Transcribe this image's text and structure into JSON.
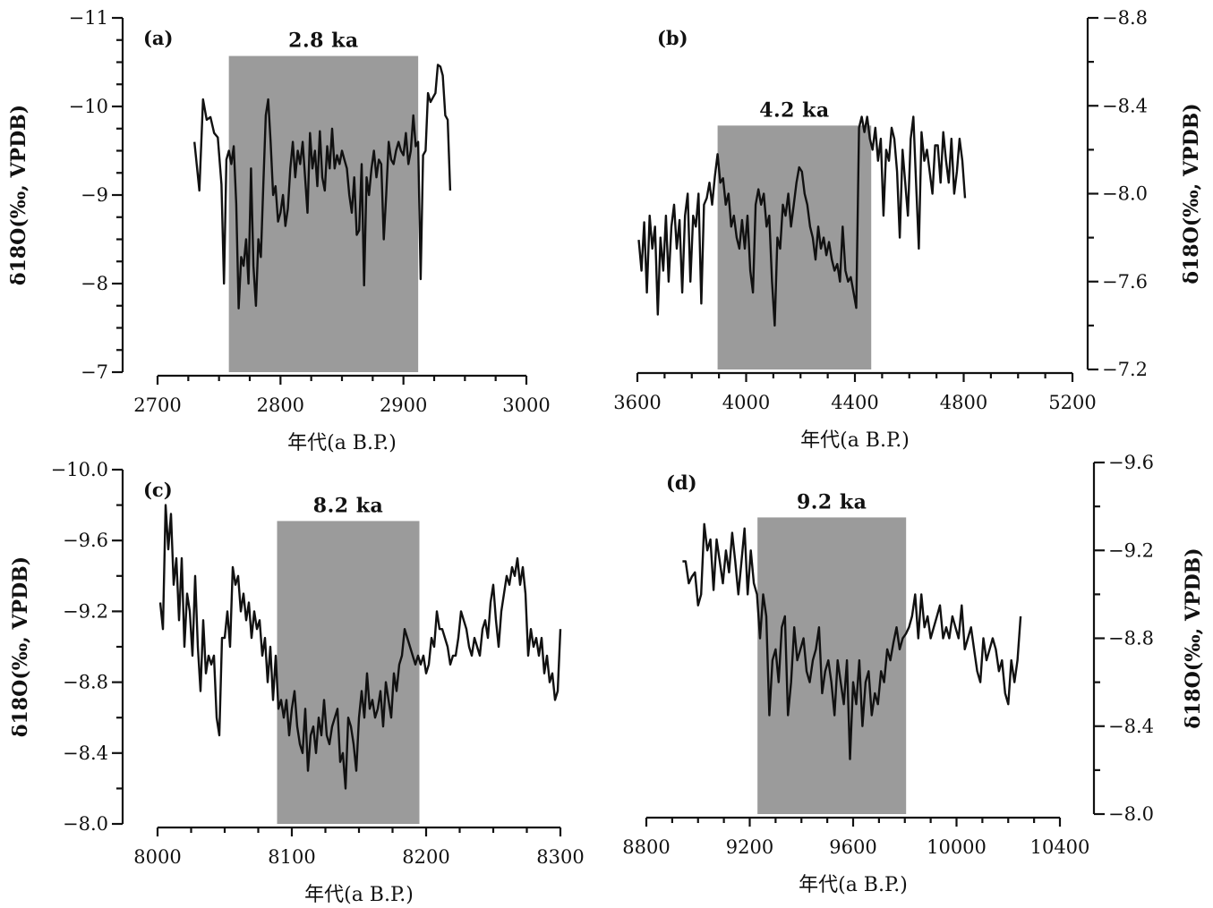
{
  "chart_data": [
    {
      "id": "a",
      "type": "line",
      "panel_label": "(a)",
      "event_label": "2.8 ka",
      "xlabel": "年代(a B.P.)",
      "ylabel": "δ18O(‰, VPDB)",
      "y_axis_side": "left",
      "y_reversed": true,
      "xlim": [
        2700,
        3000
      ],
      "ylim": [
        -7,
        -11
      ],
      "xticks": [
        "2700",
        "2800",
        "2900",
        "3000"
      ],
      "yticks": [
        "-11",
        "-10",
        "-9",
        "-8",
        "-7"
      ],
      "shaded_range_x": [
        2758,
        2912
      ],
      "shaded_top_y": -10.57,
      "x": [
        2730,
        2734,
        2737,
        2740,
        2743,
        2746,
        2749,
        2752,
        2754,
        2756,
        2758,
        2760,
        2762,
        2764,
        2766,
        2768,
        2770,
        2772,
        2774,
        2776,
        2778,
        2780,
        2782,
        2784,
        2786,
        2788,
        2790,
        2792,
        2794,
        2796,
        2798,
        2800,
        2802,
        2804,
        2806,
        2808,
        2810,
        2812,
        2814,
        2816,
        2818,
        2820,
        2822,
        2824,
        2826,
        2828,
        2830,
        2832,
        2834,
        2836,
        2838,
        2840,
        2842,
        2844,
        2846,
        2848,
        2850,
        2852,
        2854,
        2856,
        2858,
        2860,
        2862,
        2864,
        2866,
        2868,
        2870,
        2872,
        2874,
        2876,
        2878,
        2880,
        2882,
        2884,
        2886,
        2888,
        2890,
        2892,
        2894,
        2896,
        2898,
        2900,
        2902,
        2904,
        2906,
        2908,
        2910,
        2912,
        2914,
        2916,
        2918,
        2920,
        2922,
        2924,
        2926,
        2928,
        2930,
        2932,
        2934,
        2936,
        2938
      ],
      "y": [
        -9.6,
        -9.05,
        -10.08,
        -9.85,
        -9.88,
        -9.7,
        -9.65,
        -9.12,
        -8.0,
        -9.4,
        -9.5,
        -9.35,
        -9.55,
        -8.9,
        -7.72,
        -8.3,
        -8.2,
        -8.5,
        -8.0,
        -9.3,
        -8.2,
        -7.75,
        -8.5,
        -8.3,
        -9.1,
        -9.9,
        -10.08,
        -9.6,
        -9.0,
        -9.1,
        -8.7,
        -8.8,
        -9.0,
        -8.65,
        -8.85,
        -9.3,
        -9.6,
        -9.2,
        -9.5,
        -9.35,
        -9.6,
        -9.2,
        -8.8,
        -9.7,
        -9.3,
        -9.5,
        -9.1,
        -9.72,
        -9.2,
        -9.05,
        -9.55,
        -9.3,
        -9.75,
        -9.3,
        -9.45,
        -9.35,
        -9.5,
        -9.4,
        -9.3,
        -9.0,
        -8.8,
        -9.2,
        -8.55,
        -8.6,
        -9.35,
        -7.98,
        -9.2,
        -9.0,
        -9.3,
        -9.5,
        -9.2,
        -9.4,
        -9.35,
        -8.5,
        -9.0,
        -9.6,
        -9.4,
        -9.35,
        -9.5,
        -9.6,
        -9.5,
        -9.45,
        -9.7,
        -9.35,
        -9.5,
        -9.9,
        -9.55,
        -9.6,
        -8.05,
        -9.45,
        -9.5,
        -10.15,
        -10.05,
        -10.1,
        -10.15,
        -10.47,
        -10.45,
        -10.35,
        -9.9,
        -9.85,
        -9.05
      ]
    },
    {
      "id": "b",
      "type": "line",
      "panel_label": "(b)",
      "event_label": "4.2 ka",
      "xlabel": "年代(a B.P.)",
      "ylabel": "δ18O(‰, VPDB)",
      "y_axis_side": "right",
      "y_reversed": true,
      "xlim": [
        3600,
        5200
      ],
      "ylim": [
        -7.2,
        -8.8
      ],
      "xticks": [
        "3600",
        "4000",
        "4400",
        "4800",
        "5200"
      ],
      "yticks": [
        "-8.8",
        "-8.4",
        "-8.0",
        "-7.6",
        "-7.2"
      ],
      "shaded_range_x": [
        3895,
        4460
      ],
      "shaded_top_y": -8.31,
      "x": [
        3605,
        3615,
        3625,
        3635,
        3645,
        3655,
        3665,
        3675,
        3685,
        3695,
        3705,
        3715,
        3725,
        3735,
        3745,
        3755,
        3765,
        3775,
        3785,
        3795,
        3805,
        3815,
        3825,
        3835,
        3845,
        3855,
        3865,
        3875,
        3885,
        3895,
        3905,
        3915,
        3925,
        3935,
        3945,
        3955,
        3965,
        3975,
        3985,
        3995,
        4005,
        4015,
        4025,
        4035,
        4045,
        4055,
        4065,
        4075,
        4085,
        4095,
        4105,
        4115,
        4125,
        4135,
        4145,
        4155,
        4165,
        4175,
        4185,
        4195,
        4205,
        4215,
        4225,
        4235,
        4245,
        4255,
        4265,
        4275,
        4285,
        4295,
        4305,
        4315,
        4325,
        4335,
        4345,
        4355,
        4365,
        4375,
        4385,
        4395,
        4405,
        4415,
        4425,
        4435,
        4445,
        4455,
        4465,
        4475,
        4485,
        4495,
        4505,
        4515,
        4525,
        4535,
        4545,
        4555,
        4565,
        4575,
        4585,
        4595,
        4605,
        4615,
        4625,
        4635,
        4645,
        4655,
        4665,
        4675,
        4685,
        4695,
        4705,
        4715,
        4725,
        4735,
        4745,
        4755,
        4765,
        4775,
        4785,
        4795,
        4805
      ],
      "y": [
        -7.79,
        -7.65,
        -7.87,
        -7.55,
        -7.9,
        -7.75,
        -7.85,
        -7.45,
        -7.8,
        -7.65,
        -7.9,
        -7.6,
        -7.85,
        -7.95,
        -7.75,
        -7.88,
        -7.55,
        -7.9,
        -8.0,
        -7.6,
        -7.9,
        -7.85,
        -8.0,
        -7.5,
        -7.95,
        -7.98,
        -8.05,
        -7.95,
        -8.08,
        -8.18,
        -8.05,
        -8.07,
        -7.95,
        -8.0,
        -7.85,
        -7.9,
        -7.8,
        -7.75,
        -7.88,
        -7.75,
        -7.9,
        -7.65,
        -7.55,
        -7.95,
        -8.02,
        -7.95,
        -8.0,
        -7.85,
        -7.9,
        -7.6,
        -7.4,
        -7.8,
        -7.75,
        -7.95,
        -7.9,
        -8.0,
        -7.85,
        -7.95,
        -8.05,
        -8.12,
        -8.1,
        -8.0,
        -7.95,
        -7.85,
        -7.8,
        -7.7,
        -7.85,
        -7.75,
        -7.8,
        -7.72,
        -7.78,
        -7.7,
        -7.65,
        -7.68,
        -7.6,
        -7.85,
        -7.65,
        -7.6,
        -7.62,
        -7.55,
        -7.48,
        -8.3,
        -8.35,
        -8.28,
        -8.35,
        -8.25,
        -8.2,
        -8.3,
        -8.15,
        -8.25,
        -7.9,
        -8.2,
        -8.15,
        -8.3,
        -8.25,
        -8.1,
        -7.8,
        -8.2,
        -8.05,
        -7.9,
        -8.25,
        -8.35,
        -8.05,
        -7.75,
        -8.28,
        -8.15,
        -8.2,
        -8.1,
        -8.0,
        -8.22,
        -8.22,
        -8.05,
        -8.28,
        -8.15,
        -8.05,
        -8.25,
        -8.0,
        -8.1,
        -8.25,
        -8.15,
        -7.98
      ]
    },
    {
      "id": "c",
      "type": "line",
      "panel_label": "(c)",
      "event_label": "8.2 ka",
      "xlabel": "年代(a B.P.)",
      "ylabel": "δ18O(‰, VPDB)",
      "y_axis_side": "left",
      "y_reversed": true,
      "xlim": [
        8000,
        8300
      ],
      "ylim": [
        -8.0,
        -10.0
      ],
      "xticks": [
        "8000",
        "8100",
        "8200",
        "8300"
      ],
      "yticks": [
        "-10.0",
        "-9.6",
        "-9.2",
        "-8.8",
        "-8.4",
        "-8.0"
      ],
      "shaded_range_x": [
        8089,
        8195
      ],
      "shaded_top_y": -9.71,
      "x": [
        8002,
        8004,
        8006,
        8008,
        8010,
        8012,
        8014,
        8016,
        8018,
        8020,
        8022,
        8024,
        8026,
        8028,
        8030,
        8032,
        8034,
        8036,
        8038,
        8040,
        8042,
        8044,
        8046,
        8048,
        8050,
        8052,
        8054,
        8056,
        8058,
        8060,
        8062,
        8064,
        8066,
        8068,
        8070,
        8072,
        8074,
        8076,
        8078,
        8080,
        8082,
        8084,
        8086,
        8088,
        8090,
        8092,
        8094,
        8096,
        8098,
        8100,
        8102,
        8104,
        8106,
        8108,
        8110,
        8112,
        8114,
        8116,
        8118,
        8120,
        8122,
        8124,
        8126,
        8128,
        8130,
        8132,
        8134,
        8136,
        8138,
        8140,
        8142,
        8144,
        8146,
        8148,
        8150,
        8152,
        8154,
        8156,
        8158,
        8160,
        8162,
        8164,
        8166,
        8168,
        8170,
        8172,
        8174,
        8176,
        8178,
        8180,
        8182,
        8184,
        8186,
        8188,
        8190,
        8192,
        8194,
        8196,
        8198,
        8200,
        8202,
        8204,
        8206,
        8208,
        8210,
        8212,
        8214,
        8216,
        8218,
        8220,
        8222,
        8224,
        8226,
        8228,
        8230,
        8232,
        8234,
        8236,
        8238,
        8240,
        8242,
        8244,
        8246,
        8248,
        8250,
        8252,
        8254,
        8256,
        8258,
        8260,
        8262,
        8264,
        8266,
        8268,
        8270,
        8272,
        8274,
        8276,
        8278,
        8280,
        8282,
        8284,
        8286,
        8288,
        8290,
        8292,
        8294,
        8296,
        8298,
        8300
      ],
      "y": [
        -9.25,
        -9.1,
        -9.8,
        -9.55,
        -9.75,
        -9.35,
        -9.5,
        -9.15,
        -9.5,
        -9.0,
        -9.3,
        -9.2,
        -8.95,
        -9.4,
        -9.0,
        -8.75,
        -9.15,
        -8.85,
        -8.95,
        -8.9,
        -8.95,
        -8.6,
        -8.5,
        -9.05,
        -9.05,
        -9.2,
        -9.0,
        -9.45,
        -9.35,
        -9.4,
        -9.2,
        -9.3,
        -9.15,
        -9.25,
        -9.05,
        -9.2,
        -9.1,
        -9.15,
        -8.95,
        -9.05,
        -8.8,
        -9.0,
        -8.7,
        -8.95,
        -8.65,
        -8.7,
        -8.6,
        -8.7,
        -8.5,
        -8.65,
        -8.75,
        -8.55,
        -8.45,
        -8.4,
        -8.65,
        -8.3,
        -8.5,
        -8.55,
        -8.4,
        -8.6,
        -8.5,
        -8.7,
        -8.5,
        -8.45,
        -8.55,
        -8.6,
        -8.65,
        -8.35,
        -8.4,
        -8.2,
        -8.6,
        -8.55,
        -8.45,
        -8.3,
        -8.6,
        -8.75,
        -8.6,
        -8.85,
        -8.65,
        -8.7,
        -8.6,
        -8.65,
        -8.75,
        -8.55,
        -8.8,
        -8.7,
        -8.6,
        -8.85,
        -8.75,
        -8.9,
        -8.95,
        -9.1,
        -9.05,
        -9.0,
        -8.95,
        -8.9,
        -8.95,
        -8.9,
        -8.95,
        -8.85,
        -8.9,
        -9.05,
        -9.0,
        -9.2,
        -9.1,
        -9.1,
        -9.05,
        -9.0,
        -8.9,
        -8.95,
        -8.95,
        -9.05,
        -9.2,
        -9.15,
        -9.1,
        -9.0,
        -8.95,
        -9.05,
        -9.0,
        -8.95,
        -9.1,
        -9.15,
        -9.05,
        -9.25,
        -9.35,
        -9.15,
        -9.0,
        -9.2,
        -9.3,
        -9.4,
        -9.35,
        -9.45,
        -9.4,
        -9.5,
        -9.35,
        -9.45,
        -9.3,
        -8.95,
        -9.1,
        -9.0,
        -9.05,
        -8.95,
        -9.05,
        -8.85,
        -8.95,
        -8.8,
        -8.85,
        -8.7,
        -8.75,
        -9.1
      ]
    },
    {
      "id": "d",
      "type": "line",
      "panel_label": "(d)",
      "event_label": "9.2 ka",
      "xlabel": "年代(a B.P.)",
      "ylabel": "δ18O(‰, VPDB)",
      "y_axis_side": "right",
      "y_reversed": true,
      "xlim": [
        8800,
        10400
      ],
      "ylim": [
        -8.0,
        -9.6
      ],
      "xticks": [
        "8800",
        "9200",
        "9600",
        "10000",
        "10400"
      ],
      "yticks": [
        "-9.6",
        "-9.2",
        "-8.8",
        "-8.4",
        "-8.0"
      ],
      "shaded_range_x": [
        9230,
        9805
      ],
      "shaded_top_y": -9.35,
      "x": [
        8940,
        8952,
        8964,
        8976,
        8988,
        9000,
        9012,
        9024,
        9036,
        9048,
        9060,
        9072,
        9084,
        9096,
        9108,
        9120,
        9132,
        9144,
        9156,
        9168,
        9180,
        9192,
        9204,
        9216,
        9228,
        9240,
        9252,
        9264,
        9276,
        9288,
        9300,
        9312,
        9324,
        9336,
        9348,
        9360,
        9372,
        9384,
        9396,
        9408,
        9420,
        9432,
        9444,
        9456,
        9468,
        9480,
        9492,
        9504,
        9516,
        9528,
        9540,
        9552,
        9564,
        9576,
        9588,
        9600,
        9612,
        9624,
        9636,
        9648,
        9660,
        9672,
        9684,
        9696,
        9708,
        9720,
        9732,
        9744,
        9756,
        9768,
        9780,
        9792,
        9804,
        9816,
        9828,
        9840,
        9852,
        9864,
        9876,
        9888,
        9900,
        9912,
        9924,
        9936,
        9948,
        9960,
        9972,
        9984,
        9996,
        10008,
        10020,
        10032,
        10044,
        10056,
        10068,
        10080,
        10092,
        10104,
        10116,
        10128,
        10140,
        10152,
        10164,
        10176,
        10188,
        10200,
        10212,
        10224,
        10236,
        10248
      ],
      "y": [
        -9.15,
        -9.15,
        -9.05,
        -9.08,
        -9.1,
        -8.95,
        -9.0,
        -9.32,
        -9.2,
        -9.25,
        -9.02,
        -9.25,
        -9.15,
        -9.05,
        -9.2,
        -9.1,
        -9.28,
        -9.15,
        -9.0,
        -9.15,
        -9.3,
        -9.0,
        -9.2,
        -9.05,
        -9.0,
        -8.8,
        -9.0,
        -8.9,
        -8.45,
        -8.7,
        -8.75,
        -8.6,
        -8.85,
        -8.9,
        -8.45,
        -8.6,
        -8.85,
        -8.7,
        -8.75,
        -8.8,
        -8.65,
        -8.6,
        -8.7,
        -8.75,
        -8.85,
        -8.55,
        -8.65,
        -8.7,
        -8.6,
        -8.45,
        -8.7,
        -8.6,
        -8.5,
        -8.7,
        -8.25,
        -8.6,
        -8.5,
        -8.7,
        -8.4,
        -8.6,
        -8.65,
        -8.45,
        -8.55,
        -8.5,
        -8.65,
        -8.6,
        -8.75,
        -8.7,
        -8.78,
        -8.85,
        -8.75,
        -8.8,
        -8.82,
        -8.85,
        -8.9,
        -9.0,
        -8.8,
        -9.0,
        -8.85,
        -8.9,
        -8.8,
        -8.85,
        -8.9,
        -8.95,
        -8.8,
        -8.85,
        -8.8,
        -8.9,
        -8.85,
        -8.8,
        -8.95,
        -8.75,
        -8.8,
        -8.85,
        -8.75,
        -8.65,
        -8.6,
        -8.8,
        -8.7,
        -8.75,
        -8.8,
        -8.75,
        -8.65,
        -8.7,
        -8.55,
        -8.5,
        -8.7,
        -8.6,
        -8.7,
        -8.9
      ]
    }
  ]
}
